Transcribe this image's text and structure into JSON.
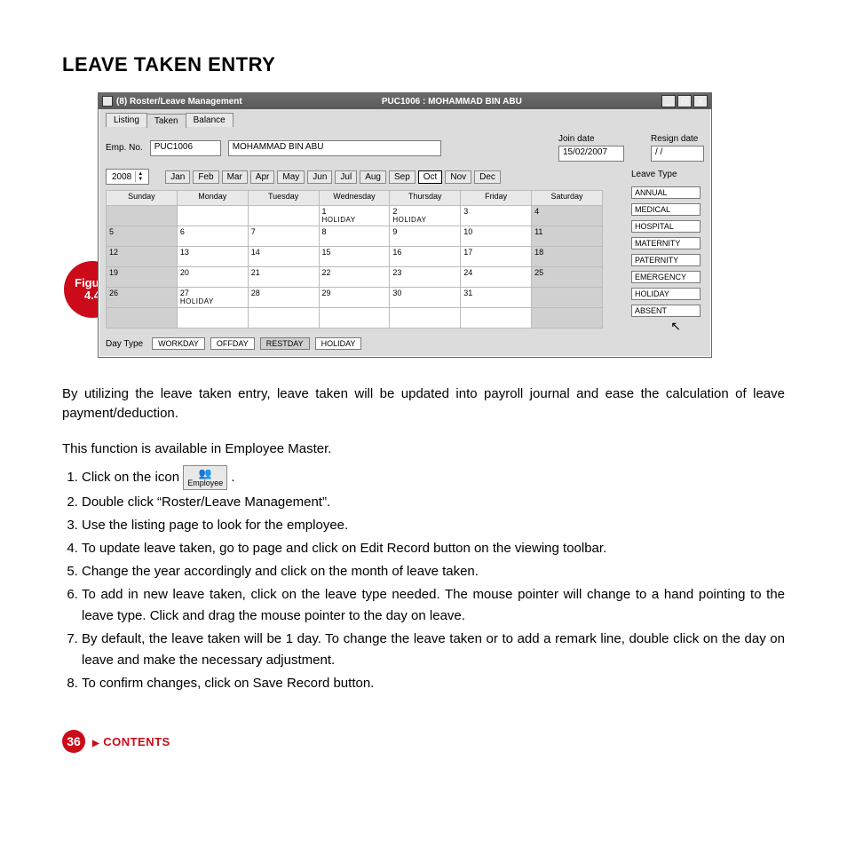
{
  "page": {
    "title": "LEAVE TAKEN ENTRY",
    "number": "36",
    "contents_label": "CONTENTS"
  },
  "figure_badge": {
    "line1": "Figure",
    "line2": "4.4"
  },
  "window": {
    "titlebar_left": "(8)  Roster/Leave Management",
    "titlebar_center": "PUC1006 : MOHAMMAD BIN ABU",
    "tabs": [
      "Listing",
      "Taken",
      "Balance"
    ],
    "active_tab_index": 1,
    "emp_no_label": "Emp. No.",
    "emp_no_value": "PUC1006",
    "emp_name_value": "MOHAMMAD BIN ABU",
    "join_date_label": "Join date",
    "join_date_value": "15/02/2007",
    "resign_date_label": "Resign date",
    "resign_date_value": "  /  /",
    "year_value": "2008",
    "months": [
      "Jan",
      "Feb",
      "Mar",
      "Apr",
      "May",
      "Jun",
      "Jul",
      "Aug",
      "Sep",
      "Oct",
      "Nov",
      "Dec"
    ],
    "active_month_index": 9,
    "weekdays": [
      "Sunday",
      "Monday",
      "Tuesday",
      "Wednesday",
      "Thursday",
      "Friday",
      "Saturday"
    ],
    "calendar_rows": [
      [
        {
          "num": "",
          "label": "",
          "shade": true
        },
        {
          "num": "",
          "label": ""
        },
        {
          "num": "",
          "label": ""
        },
        {
          "num": "1",
          "label": "HOLIDAY"
        },
        {
          "num": "2",
          "label": "HOLIDAY"
        },
        {
          "num": "3",
          "label": ""
        },
        {
          "num": "4",
          "label": "",
          "shade": true
        }
      ],
      [
        {
          "num": "5",
          "label": "",
          "shade": true
        },
        {
          "num": "6",
          "label": ""
        },
        {
          "num": "7",
          "label": ""
        },
        {
          "num": "8",
          "label": ""
        },
        {
          "num": "9",
          "label": ""
        },
        {
          "num": "10",
          "label": ""
        },
        {
          "num": "11",
          "label": "",
          "shade": true
        }
      ],
      [
        {
          "num": "12",
          "label": "",
          "shade": true
        },
        {
          "num": "13",
          "label": ""
        },
        {
          "num": "14",
          "label": ""
        },
        {
          "num": "15",
          "label": ""
        },
        {
          "num": "16",
          "label": ""
        },
        {
          "num": "17",
          "label": ""
        },
        {
          "num": "18",
          "label": "",
          "shade": true
        }
      ],
      [
        {
          "num": "19",
          "label": "",
          "shade": true
        },
        {
          "num": "20",
          "label": ""
        },
        {
          "num": "21",
          "label": ""
        },
        {
          "num": "22",
          "label": ""
        },
        {
          "num": "23",
          "label": ""
        },
        {
          "num": "24",
          "label": ""
        },
        {
          "num": "25",
          "label": "",
          "shade": true
        }
      ],
      [
        {
          "num": "26",
          "label": "",
          "shade": true
        },
        {
          "num": "27",
          "label": "HOLIDAY"
        },
        {
          "num": "28",
          "label": ""
        },
        {
          "num": "29",
          "label": ""
        },
        {
          "num": "30",
          "label": ""
        },
        {
          "num": "31",
          "label": ""
        },
        {
          "num": "",
          "label": "",
          "shade": true
        }
      ],
      [
        {
          "num": "",
          "label": "",
          "shade": true
        },
        {
          "num": "",
          "label": ""
        },
        {
          "num": "",
          "label": ""
        },
        {
          "num": "",
          "label": ""
        },
        {
          "num": "",
          "label": ""
        },
        {
          "num": "",
          "label": ""
        },
        {
          "num": "",
          "label": "",
          "shade": true
        }
      ]
    ],
    "leave_type_label": "Leave Type",
    "leave_types": [
      "ANNUAL",
      "MEDICAL",
      "HOSPITAL",
      "MATERNITY",
      "PATERNITY",
      "EMERGENCY",
      "HOLIDAY",
      "ABSENT"
    ],
    "day_type_label": "Day Type",
    "day_types": [
      {
        "label": "WORKDAY",
        "shade": false
      },
      {
        "label": "OFFDAY",
        "shade": false
      },
      {
        "label": "RESTDAY",
        "shade": true
      },
      {
        "label": "HOLIDAY",
        "shade": false
      }
    ]
  },
  "body": {
    "p1": "By utilizing the leave taken entry, leave taken will be updated into payroll journal and ease the calculation of leave payment/deduction.",
    "p2": "This function is available in Employee Master.",
    "steps": [
      "Click on the icon",
      "Double click “Roster/Leave Management”.",
      "Use the listing page to look for the employee.",
      "To update leave taken, go to page and click on Edit Record button on the viewing toolbar.",
      "Change the year accordingly and click on the month of leave taken.",
      "To add in new leave taken, click on the leave type needed. The mouse pointer will change to a hand pointing to the leave type. Click and drag the mouse pointer to the day on leave.",
      "By default, the leave taken will be 1 day. To change the leave taken or to add a remark line, double click on the day on leave and make the necessary adjustment.",
      "To confirm changes, click on Save Record button."
    ],
    "inline_icon_label": "Employee"
  },
  "colors": {
    "accent": "#cc0b1a",
    "window_bg": "#dcdcdc",
    "shade_cell": "#d0d0d0"
  }
}
